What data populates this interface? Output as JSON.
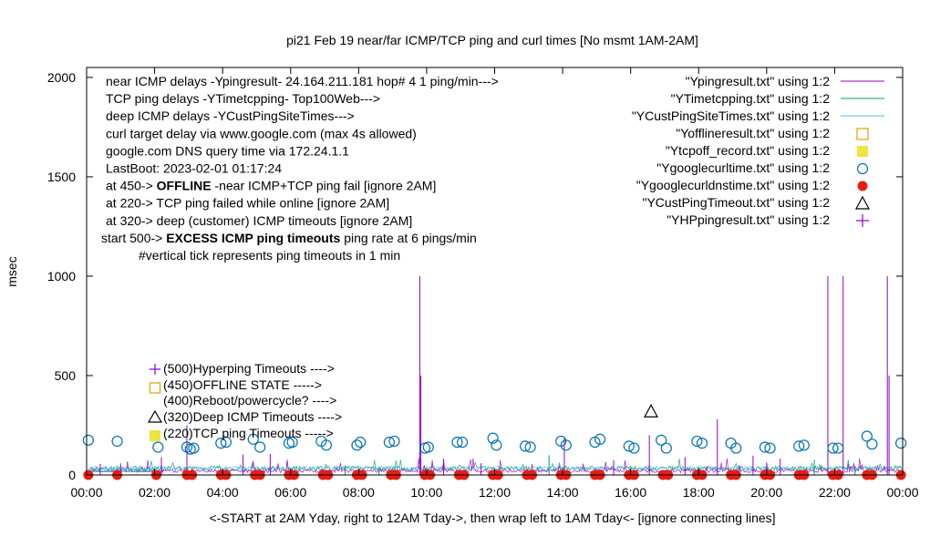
{
  "chart_data": {
    "type": "line",
    "title": "pi21 Feb 19  near/far ICMP/TCP ping and curl times [No msmt 1AM-2AM]",
    "ylabel": "msec",
    "xlabel": "<-START at 2AM Yday, right to 12AM Tday->, then wrap left to 1AM Tday<- [ignore connecting lines]",
    "xlim": [
      0,
      24
    ],
    "ylim": [
      0,
      2050
    ],
    "x_ticks": [
      "00:00",
      "02:00",
      "04:00",
      "06:00",
      "08:00",
      "10:00",
      "12:00",
      "14:00",
      "16:00",
      "18:00",
      "20:00",
      "22:00",
      "00:00"
    ],
    "y_ticks": [
      "0",
      "500",
      "1000",
      "1500",
      "2000"
    ],
    "y_tick_values": [
      0,
      500,
      1000,
      1500,
      2000
    ],
    "legend_position": "top-right",
    "series": [
      {
        "name": "\"Ypingresult.txt\" using 1:2",
        "style": "line",
        "color": "#9400d3"
      },
      {
        "name": "\"YTimetcpping.txt\" using 1:2",
        "style": "line",
        "color": "#009e73"
      },
      {
        "name": "\"YCustPingSiteTimes.txt\" using 1:2",
        "style": "line",
        "color": "#56b4e9"
      },
      {
        "name": "\"Yofflineresult.txt\" using 1:2",
        "style": "open-square",
        "color": "#e69f00"
      },
      {
        "name": "\"Ytcpoff_record.txt\" using 1:2",
        "style": "filled-square",
        "color": "#f0e442"
      },
      {
        "name": "\"Ygooglecurltime.txt\" using 1:2",
        "style": "open-circle",
        "color": "#0072b2"
      },
      {
        "name": "\"Ygooglecurldnstime.txt\" using 1:2",
        "style": "filled-circle",
        "color": "#e51e10"
      },
      {
        "name": "\"YCustPingTimeout.txt\" using 1:2",
        "style": "open-triangle",
        "color": "#000000"
      },
      {
        "name": "\"YHPpingresult.txt\" using 1:2",
        "style": "plus",
        "color": "#9400d3"
      }
    ],
    "ping_spikes": [
      {
        "x": 9.8,
        "y": 1000
      },
      {
        "x": 9.83,
        "y": 500
      },
      {
        "x": 21.8,
        "y": 1000
      },
      {
        "x": 22.25,
        "y": 1000
      },
      {
        "x": 23.55,
        "y": 1000
      },
      {
        "x": 23.6,
        "y": 500
      },
      {
        "x": 18.55,
        "y": 280
      },
      {
        "x": 2.95,
        "y": 250
      },
      {
        "x": 16.55,
        "y": 200
      },
      {
        "x": 14.05,
        "y": 190
      }
    ],
    "curl_times": [
      {
        "x": 0.05,
        "y": 175
      },
      {
        "x": 0.9,
        "y": 170
      },
      {
        "x": 2.1,
        "y": 140
      },
      {
        "x": 2.95,
        "y": 140
      },
      {
        "x": 3.05,
        "y": 130
      },
      {
        "x": 3.15,
        "y": 135
      },
      {
        "x": 3.95,
        "y": 160
      },
      {
        "x": 4.1,
        "y": 165
      },
      {
        "x": 4.9,
        "y": 180
      },
      {
        "x": 5.1,
        "y": 140
      },
      {
        "x": 5.95,
        "y": 160
      },
      {
        "x": 6.05,
        "y": 165
      },
      {
        "x": 6.9,
        "y": 170
      },
      {
        "x": 7.05,
        "y": 150
      },
      {
        "x": 7.95,
        "y": 150
      },
      {
        "x": 8.05,
        "y": 165
      },
      {
        "x": 8.9,
        "y": 165
      },
      {
        "x": 9.05,
        "y": 170
      },
      {
        "x": 9.95,
        "y": 135
      },
      {
        "x": 10.05,
        "y": 140
      },
      {
        "x": 10.9,
        "y": 165
      },
      {
        "x": 11.05,
        "y": 165
      },
      {
        "x": 11.95,
        "y": 185
      },
      {
        "x": 12.05,
        "y": 150
      },
      {
        "x": 12.9,
        "y": 145
      },
      {
        "x": 13.05,
        "y": 140
      },
      {
        "x": 13.95,
        "y": 170
      },
      {
        "x": 14.1,
        "y": 150
      },
      {
        "x": 14.95,
        "y": 165
      },
      {
        "x": 15.1,
        "y": 180
      },
      {
        "x": 15.95,
        "y": 145
      },
      {
        "x": 16.1,
        "y": 135
      },
      {
        "x": 16.9,
        "y": 175
      },
      {
        "x": 17.05,
        "y": 135
      },
      {
        "x": 17.95,
        "y": 170
      },
      {
        "x": 18.1,
        "y": 160
      },
      {
        "x": 18.95,
        "y": 160
      },
      {
        "x": 19.1,
        "y": 135
      },
      {
        "x": 19.95,
        "y": 140
      },
      {
        "x": 20.1,
        "y": 135
      },
      {
        "x": 20.95,
        "y": 145
      },
      {
        "x": 21.1,
        "y": 150
      },
      {
        "x": 21.95,
        "y": 135
      },
      {
        "x": 22.1,
        "y": 135
      },
      {
        "x": 22.95,
        "y": 195
      },
      {
        "x": 23.1,
        "y": 155
      },
      {
        "x": 23.95,
        "y": 160
      }
    ],
    "dns_times": [
      {
        "x": 0.05,
        "y": 0
      },
      {
        "x": 0.9,
        "y": 0
      },
      {
        "x": 2.05,
        "y": 0
      },
      {
        "x": 2.95,
        "y": 0
      },
      {
        "x": 3.1,
        "y": 0
      },
      {
        "x": 3.95,
        "y": 0
      },
      {
        "x": 4.1,
        "y": 0
      },
      {
        "x": 4.95,
        "y": 0
      },
      {
        "x": 5.1,
        "y": 0
      },
      {
        "x": 5.95,
        "y": 0
      },
      {
        "x": 6.1,
        "y": 0
      },
      {
        "x": 6.95,
        "y": 0
      },
      {
        "x": 7.1,
        "y": 0
      },
      {
        "x": 7.95,
        "y": 0
      },
      {
        "x": 8.1,
        "y": 0
      },
      {
        "x": 8.95,
        "y": 0
      },
      {
        "x": 9.1,
        "y": 0
      },
      {
        "x": 9.95,
        "y": 0
      },
      {
        "x": 10.1,
        "y": 0
      },
      {
        "x": 10.95,
        "y": 0
      },
      {
        "x": 11.1,
        "y": 0
      },
      {
        "x": 11.95,
        "y": 0
      },
      {
        "x": 12.1,
        "y": 0
      },
      {
        "x": 12.95,
        "y": 0
      },
      {
        "x": 13.1,
        "y": 0
      },
      {
        "x": 13.95,
        "y": 0
      },
      {
        "x": 14.1,
        "y": 0
      },
      {
        "x": 14.95,
        "y": 0
      },
      {
        "x": 15.1,
        "y": 0
      },
      {
        "x": 15.95,
        "y": 0
      },
      {
        "x": 16.1,
        "y": 0
      },
      {
        "x": 16.95,
        "y": 0
      },
      {
        "x": 17.1,
        "y": 0
      },
      {
        "x": 17.95,
        "y": 0
      },
      {
        "x": 18.1,
        "y": 0
      },
      {
        "x": 18.95,
        "y": 0
      },
      {
        "x": 19.1,
        "y": 0
      },
      {
        "x": 19.95,
        "y": 0
      },
      {
        "x": 20.1,
        "y": 0
      },
      {
        "x": 20.95,
        "y": 0
      },
      {
        "x": 21.1,
        "y": 0
      },
      {
        "x": 21.95,
        "y": 0
      },
      {
        "x": 22.1,
        "y": 0
      },
      {
        "x": 22.95,
        "y": 0
      },
      {
        "x": 23.1,
        "y": 0
      },
      {
        "x": 23.95,
        "y": 0
      }
    ],
    "cust_ping_timeouts": [
      {
        "x": 16.6,
        "y": 320
      }
    ],
    "annotations_left": [
      {
        "text": "near ICMP delays -Ypingresult- 24.164.211.181 hop# 4 1 ping/min--->",
        "bold_part": ""
      },
      {
        "text": "TCP ping delays -YTimetcpping- Top100Web--->",
        "bold_part": ""
      },
      {
        "text": "deep ICMP delays -YCustPingSiteTimes--->",
        "bold_part": ""
      },
      {
        "text": "curl target delay via www.google.com (max 4s allowed)",
        "bold_part": ""
      },
      {
        "text": "google.com DNS query time via 172.24.1.1",
        "bold_part": ""
      },
      {
        "text": "LastBoot: 2023-02-01 01:17:24",
        "bold_part": ""
      },
      {
        "text": "at 450-> ",
        "bold_part": "OFFLINE",
        "tail": " -near ICMP+TCP ping fail [ignore 2AM]"
      },
      {
        "text": "at 220-> TCP ping failed while online [ignore 2AM]",
        "bold_part": ""
      },
      {
        "text": "at 320-> deep (customer) ICMP timeouts [ignore 2AM]",
        "bold_part": ""
      },
      {
        "text": "start 500-> ",
        "bold_part": "EXCESS ICMP ping timeouts",
        "tail": " ping rate at 6 pings/min"
      },
      {
        "text": "#vertical tick represents ping timeouts in 1 min",
        "bold_part": ""
      }
    ],
    "level_labels": [
      {
        "text": "(500)Hyperping Timeouts ---->",
        "marker": "plus"
      },
      {
        "text": "(450)OFFLINE STATE ----->",
        "marker": "open-square"
      },
      {
        "text": "(400)Reboot/powercycle? ---->",
        "marker": "none"
      },
      {
        "text": "(320)Deep ICMP Timeouts ---->",
        "marker": "open-triangle"
      },
      {
        "text": "(220)TCP ping Timeouts ----->",
        "marker": "filled-square"
      }
    ]
  }
}
